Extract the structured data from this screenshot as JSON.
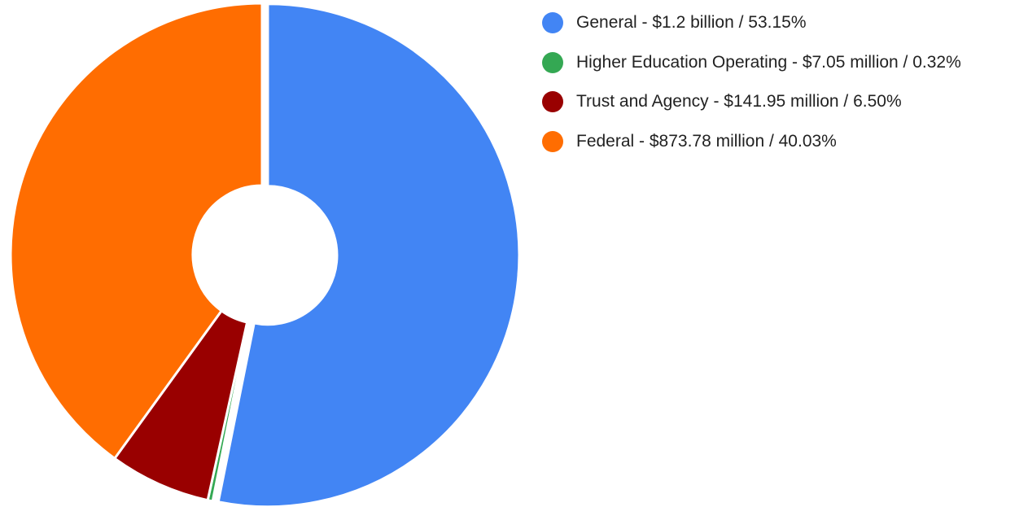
{
  "chart_data": {
    "type": "pie",
    "style": "donut-exploded",
    "title": "",
    "legend_position": "right",
    "slices": [
      {
        "name": "General",
        "value": 53.15,
        "color": "#4285f4",
        "label": "General - $1.2 billion / 53.15%"
      },
      {
        "name": "Higher Education Operating",
        "value": 0.32,
        "color": "#34a853",
        "label": "Higher Education Operating - $7.05 million / 0.32%"
      },
      {
        "name": "Trust and Agency",
        "value": 6.5,
        "color": "#990000",
        "label": "Trust and Agency - $141.95 million / 6.50%"
      },
      {
        "name": "Federal",
        "value": 40.03,
        "color": "#ff6d01",
        "label": "Federal - $873.78 million / 40.03%"
      }
    ]
  }
}
